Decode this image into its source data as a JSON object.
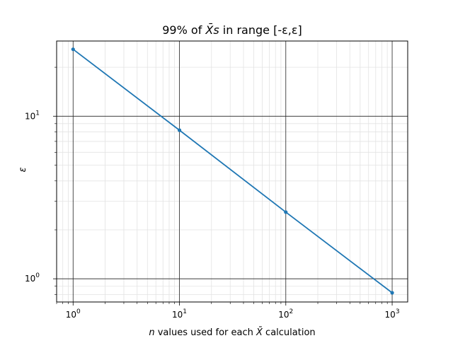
{
  "chart_data": {
    "type": "line",
    "title": "99% of X̄s in range [-ε,ε]",
    "title_parts": {
      "prefix": "99% of ",
      "xbar": "X̄",
      "s": "s",
      "suffix": " in range [-ε,ε]"
    },
    "xlabel": "n values used for each X̄ calculation",
    "xlabel_parts": {
      "n": "n",
      "middle": " values used for each ",
      "xbar": "X̄",
      "end": " calculation"
    },
    "ylabel": "ε",
    "x_scale": "log",
    "y_scale": "log",
    "xlim": [
      0.7,
      1400
    ],
    "ylim": [
      0.72,
      29
    ],
    "grid": {
      "major": true,
      "minor": true
    },
    "x_ticks": [
      {
        "value": 1,
        "base": "10",
        "exp": "0"
      },
      {
        "value": 10,
        "base": "10",
        "exp": "1"
      },
      {
        "value": 100,
        "base": "10",
        "exp": "2"
      },
      {
        "value": 1000,
        "base": "10",
        "exp": "3"
      }
    ],
    "y_ticks": [
      {
        "value": 1,
        "base": "10",
        "exp": "0"
      },
      {
        "value": 10,
        "base": "10",
        "exp": "1"
      }
    ],
    "series": [
      {
        "color": "#1f77b4",
        "x": [
          1,
          10,
          100,
          1000
        ],
        "y": [
          25.8,
          8.2,
          2.57,
          0.82
        ]
      }
    ]
  }
}
